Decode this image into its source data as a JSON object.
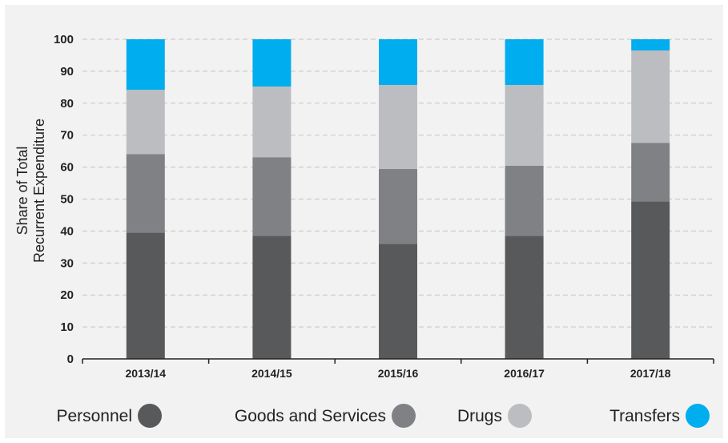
{
  "chart_data": {
    "type": "bar",
    "stacked": true,
    "title": "",
    "xlabel": "",
    "ylabel_lines": [
      "Share of Total",
      "Recurrent Expenditure"
    ],
    "ylim": [
      0,
      100
    ],
    "yticks": [
      0,
      10,
      20,
      30,
      40,
      50,
      60,
      70,
      80,
      90,
      100
    ],
    "grid": "horizontal-dashed",
    "legend_position": "bottom",
    "categories": [
      "2013/14",
      "2014/15",
      "2015/16",
      "2016/17",
      "2017/18"
    ],
    "series": [
      {
        "name": "Personnel",
        "color": "#58595b",
        "values": [
          39.5,
          38.5,
          36,
          38.5,
          49.3
        ]
      },
      {
        "name": "Goods and Services",
        "color": "#808184",
        "values": [
          24.6,
          24.6,
          23.4,
          21.9,
          18.3
        ]
      },
      {
        "name": "Drugs",
        "color": "#bcbdc0",
        "values": [
          20.1,
          22.1,
          26.3,
          25.3,
          28.9
        ]
      },
      {
        "name": "Transfers",
        "color": "#00aeef",
        "values": [
          15.8,
          14.8,
          14.3,
          14.3,
          3.5
        ]
      }
    ]
  }
}
